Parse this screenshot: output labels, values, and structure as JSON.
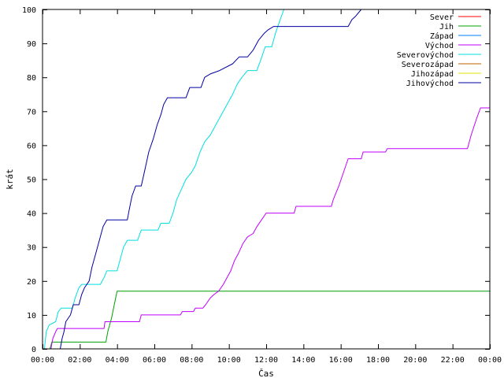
{
  "chart_data": {
    "type": "line",
    "title": "",
    "xlabel": "Čas",
    "ylabel": "krát",
    "xlim": [
      0,
      24
    ],
    "ylim": [
      0,
      100
    ],
    "grid": false,
    "legend_position": "top-right",
    "x_ticks": [
      0,
      2,
      4,
      6,
      8,
      10,
      12,
      14,
      16,
      18,
      20,
      22,
      24
    ],
    "x_tick_labels": [
      "00:00",
      "02:00",
      "04:00",
      "06:00",
      "08:00",
      "10:00",
      "12:00",
      "14:00",
      "16:00",
      "18:00",
      "20:00",
      "22:00",
      "00:00"
    ],
    "y_ticks": [
      0,
      10,
      20,
      30,
      40,
      50,
      60,
      70,
      80,
      90,
      100
    ],
    "y_tick_labels": [
      "0",
      "10",
      "20",
      "30",
      "40",
      "50",
      "60",
      "70",
      "80",
      "90",
      "100"
    ],
    "series": [
      {
        "name": "Sever",
        "color": "#ff0000",
        "points": []
      },
      {
        "name": "Jih",
        "color": "#00a000",
        "points": [
          [
            0.4,
            0
          ],
          [
            0.5,
            2
          ],
          [
            3.4,
            2
          ],
          [
            3.5,
            5
          ],
          [
            3.7,
            9
          ],
          [
            3.85,
            13
          ],
          [
            4.0,
            17
          ],
          [
            24.0,
            17
          ]
        ]
      },
      {
        "name": "Západ",
        "color": "#0080ff",
        "points": []
      },
      {
        "name": "Východ",
        "color": "#c000ff",
        "points": [
          [
            0.45,
            0
          ],
          [
            0.55,
            3
          ],
          [
            0.7,
            5
          ],
          [
            0.8,
            6
          ],
          [
            3.3,
            6
          ],
          [
            3.35,
            8
          ],
          [
            5.2,
            8
          ],
          [
            5.3,
            10
          ],
          [
            7.4,
            10
          ],
          [
            7.5,
            11
          ],
          [
            8.1,
            11
          ],
          [
            8.2,
            12
          ],
          [
            8.6,
            12
          ],
          [
            8.75,
            13
          ],
          [
            9.0,
            15
          ],
          [
            9.2,
            16
          ],
          [
            9.45,
            17
          ],
          [
            9.7,
            19
          ],
          [
            9.9,
            21
          ],
          [
            10.1,
            23
          ],
          [
            10.3,
            26
          ],
          [
            10.5,
            28
          ],
          [
            10.75,
            31
          ],
          [
            11.0,
            33
          ],
          [
            11.3,
            34
          ],
          [
            11.5,
            36
          ],
          [
            11.75,
            38
          ],
          [
            12.0,
            40
          ],
          [
            13.5,
            40
          ],
          [
            13.6,
            42
          ],
          [
            15.5,
            42
          ],
          [
            15.6,
            44
          ],
          [
            15.9,
            48
          ],
          [
            16.15,
            52
          ],
          [
            16.4,
            56
          ],
          [
            17.1,
            56
          ],
          [
            17.2,
            58
          ],
          [
            18.4,
            58
          ],
          [
            18.5,
            59
          ],
          [
            22.8,
            59
          ],
          [
            23.0,
            63
          ],
          [
            23.3,
            68
          ],
          [
            23.5,
            71
          ],
          [
            24.0,
            71
          ]
        ]
      },
      {
        "name": "Severovýchod",
        "color": "#00e0e0",
        "points": [
          [
            0.1,
            0
          ],
          [
            0.2,
            5
          ],
          [
            0.35,
            7
          ],
          [
            0.7,
            8
          ],
          [
            0.85,
            11
          ],
          [
            1.0,
            12
          ],
          [
            1.6,
            12
          ],
          [
            1.75,
            15
          ],
          [
            1.95,
            18
          ],
          [
            2.1,
            19
          ],
          [
            3.1,
            19
          ],
          [
            3.3,
            21
          ],
          [
            3.45,
            23
          ],
          [
            4.0,
            23
          ],
          [
            4.15,
            26
          ],
          [
            4.35,
            30
          ],
          [
            4.55,
            32
          ],
          [
            5.1,
            32
          ],
          [
            5.3,
            35
          ],
          [
            6.2,
            35
          ],
          [
            6.35,
            37
          ],
          [
            6.8,
            37
          ],
          [
            7.0,
            40
          ],
          [
            7.2,
            44
          ],
          [
            7.45,
            47
          ],
          [
            7.7,
            50
          ],
          [
            8.0,
            52
          ],
          [
            8.2,
            54
          ],
          [
            8.45,
            58
          ],
          [
            8.7,
            61
          ],
          [
            9.0,
            63
          ],
          [
            9.3,
            66
          ],
          [
            9.6,
            69
          ],
          [
            9.9,
            72
          ],
          [
            10.2,
            75
          ],
          [
            10.45,
            78
          ],
          [
            10.7,
            80
          ],
          [
            11.0,
            82
          ],
          [
            11.5,
            82
          ],
          [
            11.7,
            85
          ],
          [
            11.95,
            89
          ],
          [
            12.3,
            89
          ],
          [
            12.5,
            93
          ],
          [
            12.75,
            97
          ],
          [
            12.95,
            100
          ]
        ]
      },
      {
        "name": "Severozápad",
        "color": "#c06000",
        "points": []
      },
      {
        "name": "Jihozápad",
        "color": "#e0e000",
        "points": []
      },
      {
        "name": "Jihovýchod",
        "color": "#0000a0",
        "points": [
          [
            0.95,
            0
          ],
          [
            1.05,
            3
          ],
          [
            1.15,
            5
          ],
          [
            1.25,
            8
          ],
          [
            1.5,
            10
          ],
          [
            1.65,
            13
          ],
          [
            1.95,
            13
          ],
          [
            2.1,
            16
          ],
          [
            2.25,
            18
          ],
          [
            2.5,
            20
          ],
          [
            2.65,
            24
          ],
          [
            2.85,
            28
          ],
          [
            3.05,
            32
          ],
          [
            3.25,
            36
          ],
          [
            3.45,
            38
          ],
          [
            4.55,
            38
          ],
          [
            4.65,
            41
          ],
          [
            4.8,
            45
          ],
          [
            5.0,
            48
          ],
          [
            5.3,
            48
          ],
          [
            5.5,
            53
          ],
          [
            5.7,
            58
          ],
          [
            5.95,
            62
          ],
          [
            6.15,
            66
          ],
          [
            6.35,
            69
          ],
          [
            6.5,
            72
          ],
          [
            6.7,
            74
          ],
          [
            7.7,
            74
          ],
          [
            7.9,
            77
          ],
          [
            8.5,
            77
          ],
          [
            8.7,
            80
          ],
          [
            9.0,
            81
          ],
          [
            9.5,
            82
          ],
          [
            10.2,
            84
          ],
          [
            10.55,
            86
          ],
          [
            11.0,
            86
          ],
          [
            11.3,
            88
          ],
          [
            11.6,
            91
          ],
          [
            11.9,
            93
          ],
          [
            12.1,
            94
          ],
          [
            12.4,
            95
          ],
          [
            16.4,
            95
          ],
          [
            16.6,
            97
          ],
          [
            16.8,
            98
          ],
          [
            17.1,
            100
          ]
        ]
      }
    ]
  }
}
